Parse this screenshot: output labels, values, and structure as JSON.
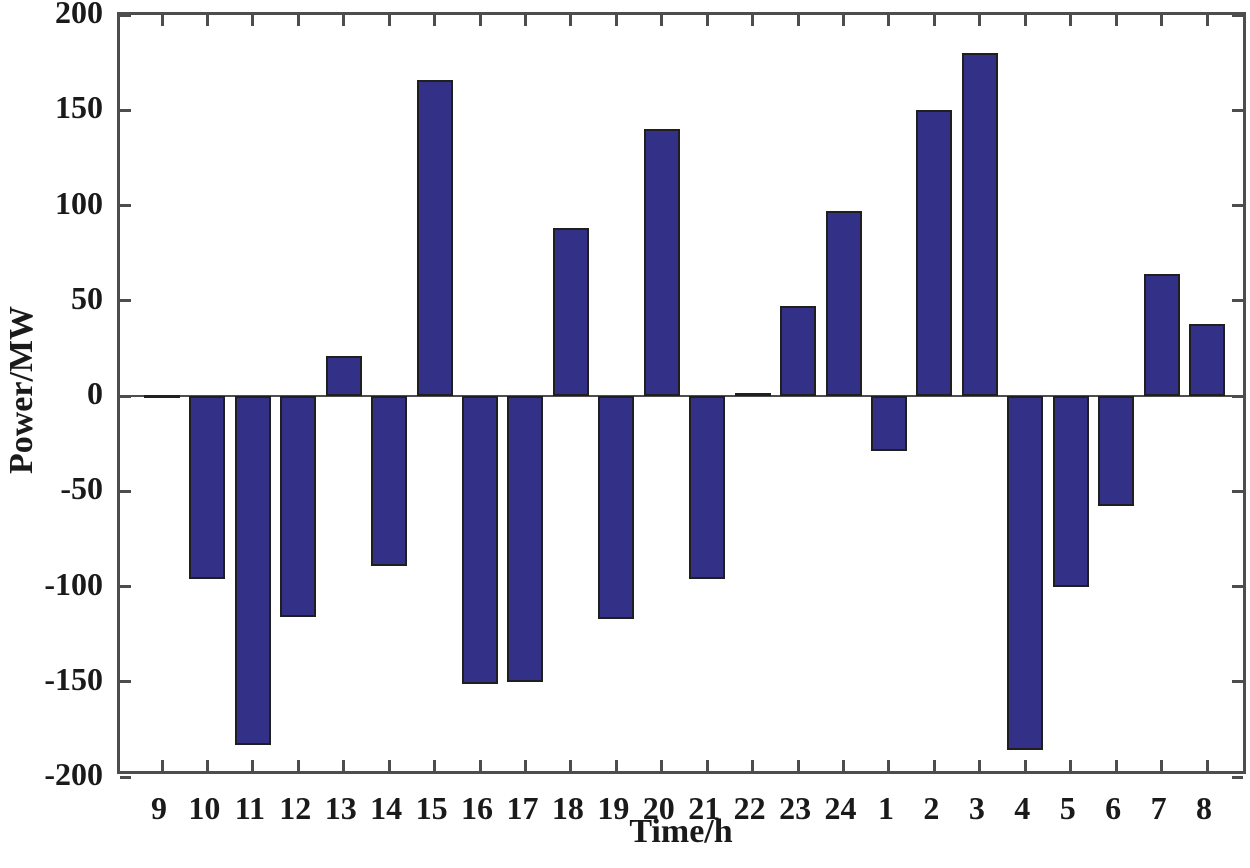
{
  "chart_data": {
    "type": "bar",
    "title": "",
    "xlabel": "Time/h",
    "ylabel": "Power/MW",
    "categories": [
      "9",
      "10",
      "11",
      "12",
      "13",
      "14",
      "15",
      "16",
      "17",
      "18",
      "19",
      "20",
      "21",
      "22",
      "23",
      "24",
      "1",
      "2",
      "3",
      "4",
      "5",
      "6",
      "7",
      "8"
    ],
    "values": [
      0,
      -96,
      -183,
      -116,
      21,
      -89,
      166,
      -151,
      -150,
      88,
      -117,
      140,
      -96,
      1,
      47,
      97,
      -29,
      150,
      180,
      -186,
      -100,
      -58,
      64,
      38
    ],
    "ylim": [
      -200,
      200
    ],
    "yticks": [
      -200,
      -150,
      -100,
      -50,
      0,
      50,
      100,
      150,
      200
    ],
    "grid": false,
    "legend_position": "none",
    "bar_color": "#333187",
    "bar_edge_color": "#1f1f1f",
    "axis_color": "#4d4d4d",
    "label_color": "#1a1a1a"
  }
}
